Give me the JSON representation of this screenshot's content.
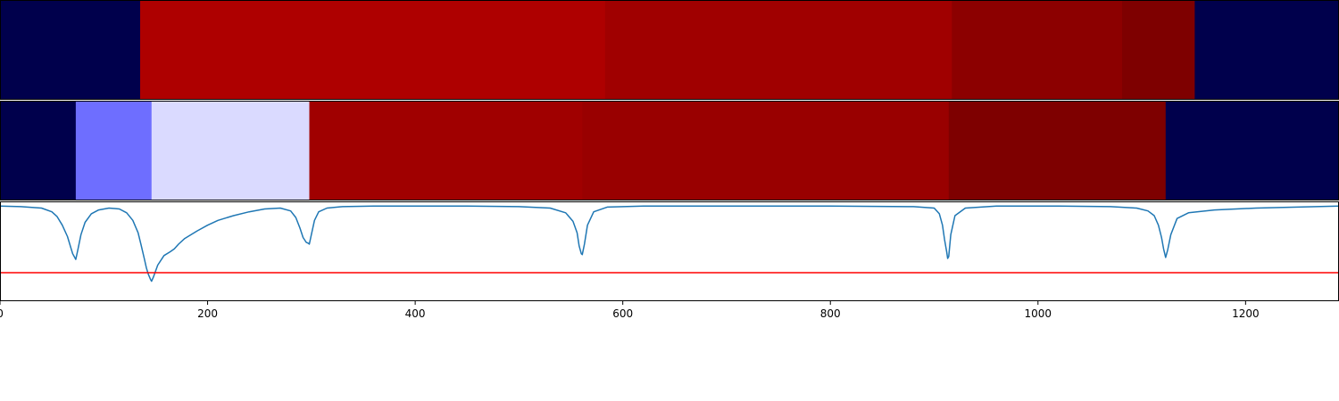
{
  "chart_data": [
    {
      "type": "heatmap",
      "row": 1,
      "x_unit": "sample index",
      "segments": [
        {
          "x0": 0,
          "x1": 135,
          "color": "#00004c"
        },
        {
          "x0": 135,
          "x1": 583,
          "color": "#ae0000"
        },
        {
          "x0": 583,
          "x1": 917,
          "color": "#a00000"
        },
        {
          "x0": 917,
          "x1": 1081,
          "color": "#8c0000"
        },
        {
          "x0": 1081,
          "x1": 1151,
          "color": "#7e0000"
        },
        {
          "x0": 1151,
          "x1": 1290,
          "color": "#00004c"
        }
      ]
    },
    {
      "type": "heatmap",
      "row": 2,
      "x_unit": "sample index",
      "segments": [
        {
          "x0": 0,
          "x1": 73,
          "color": "#00004c"
        },
        {
          "x0": 73,
          "x1": 146,
          "color": "#6e6eff"
        },
        {
          "x0": 146,
          "x1": 298,
          "color": "#dadaff"
        },
        {
          "x0": 298,
          "x1": 561,
          "color": "#a00000"
        },
        {
          "x0": 561,
          "x1": 914,
          "color": "#990000"
        },
        {
          "x0": 914,
          "x1": 1123,
          "color": "#7e0000"
        },
        {
          "x0": 1123,
          "x1": 1290,
          "color": "#00004c"
        }
      ]
    },
    {
      "type": "line",
      "xlim": [
        0,
        1290
      ],
      "ylim": [
        -1.0,
        0.05
      ],
      "xticks": [
        "0",
        "200",
        "400",
        "600",
        "800",
        "1000",
        "1200"
      ],
      "xtick_values": [
        0,
        200,
        400,
        600,
        800,
        1000,
        1200
      ],
      "series": [
        {
          "color": "#1f77b4",
          "x": [
            0,
            20,
            40,
            50,
            55,
            60,
            65,
            68,
            70,
            72,
            73,
            75,
            78,
            82,
            88,
            95,
            105,
            115,
            122,
            128,
            133,
            136,
            139,
            141,
            143,
            145,
            146,
            148,
            152,
            158,
            164,
            168,
            172,
            178,
            190,
            200,
            210,
            225,
            240,
            255,
            270,
            280,
            285,
            289,
            292,
            295,
            297,
            298,
            300,
            303,
            307,
            315,
            330,
            360,
            400,
            450,
            500,
            530,
            545,
            552,
            556,
            558,
            560,
            561,
            563,
            566,
            572,
            585,
            620,
            700,
            800,
            880,
            900,
            905,
            908,
            910,
            912,
            913,
            914,
            916,
            920,
            930,
            960,
            1020,
            1070,
            1095,
            1106,
            1112,
            1116,
            1119,
            1121,
            1123,
            1125,
            1128,
            1134,
            1145,
            1170,
            1210,
            1250,
            1290
          ],
          "y": [
            0,
            -0.005,
            -0.02,
            -0.06,
            -0.11,
            -0.2,
            -0.32,
            -0.43,
            -0.5,
            -0.54,
            -0.56,
            -0.46,
            -0.3,
            -0.17,
            -0.08,
            -0.04,
            -0.02,
            -0.03,
            -0.07,
            -0.15,
            -0.28,
            -0.41,
            -0.55,
            -0.65,
            -0.72,
            -0.77,
            -0.79,
            -0.74,
            -0.62,
            -0.52,
            -0.48,
            -0.45,
            -0.4,
            -0.34,
            -0.26,
            -0.2,
            -0.15,
            -0.1,
            -0.06,
            -0.03,
            -0.02,
            -0.05,
            -0.12,
            -0.23,
            -0.33,
            -0.38,
            -0.39,
            -0.4,
            -0.3,
            -0.15,
            -0.06,
            -0.02,
            -0.005,
            0,
            0,
            0,
            -0.005,
            -0.02,
            -0.07,
            -0.16,
            -0.28,
            -0.42,
            -0.5,
            -0.51,
            -0.4,
            -0.2,
            -0.06,
            -0.01,
            0,
            0,
            0,
            -0.005,
            -0.02,
            -0.08,
            -0.2,
            -0.35,
            -0.48,
            -0.55,
            -0.53,
            -0.3,
            -0.1,
            -0.02,
            0,
            0,
            -0.005,
            -0.02,
            -0.05,
            -0.1,
            -0.2,
            -0.33,
            -0.45,
            -0.54,
            -0.46,
            -0.3,
            -0.13,
            -0.07,
            -0.04,
            -0.02,
            -0.01,
            0
          ]
        },
        {
          "color": "#ff0000",
          "x": [
            0,
            1290
          ],
          "y": [
            -0.7,
            -0.7
          ]
        }
      ]
    }
  ]
}
